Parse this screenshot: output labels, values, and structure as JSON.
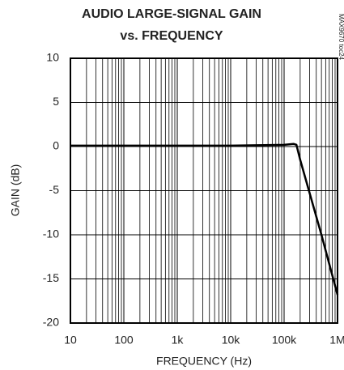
{
  "chart_data": {
    "type": "line",
    "title": [
      "AUDIO LARGE-SIGNAL GAIN",
      "vs. FREQUENCY"
    ],
    "annotation": "MAX9670 toc24",
    "xlabel": "FREQUENCY (Hz)",
    "ylabel": "GAIN (dB)",
    "xscale": "log",
    "grid": true,
    "minor_grid": true,
    "x": [
      10,
      100,
      1000,
      10000,
      100000,
      150000,
      170000,
      200000,
      500000,
      1000000
    ],
    "series": [
      {
        "name": "Gain",
        "color": "#000000",
        "values": [
          0.1,
          0.1,
          0.1,
          0.1,
          0.2,
          0.3,
          0.2,
          -1.5,
          -10,
          -16.8
        ]
      }
    ],
    "xlim": [
      10,
      1000000
    ],
    "xticks": [
      10,
      100,
      {
        "value": 1000,
        "label": "1k"
      },
      {
        "value": 10000,
        "label": "10k"
      },
      {
        "value": 100000,
        "label": "100k"
      },
      {
        "value": 1000000,
        "label": "1M"
      }
    ],
    "ylim": [
      -20,
      10
    ],
    "yticks": [
      10,
      5,
      0,
      -5,
      -10,
      -15,
      -20
    ]
  }
}
